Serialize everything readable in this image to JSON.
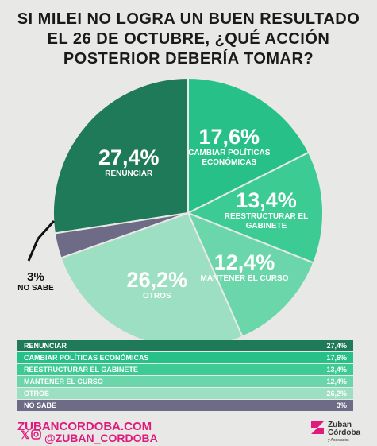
{
  "chart_data": {
    "type": "pie",
    "title": "SI MILEI NO LOGRA UN BUEN RESULTADO EL 26 DE OCTUBRE, ¿QUÉ ACCIÓN POSTERIOR DEBERÍA TOMAR?",
    "categories": [
      "RENUNCIAR",
      "CAMBIAR POLÍTICAS ECONÓMICAS",
      "REESTRUCTURAR EL GABINETE",
      "MANTENER EL CURSO",
      "OTROS",
      "NO SABE"
    ],
    "values": [
      27.4,
      17.6,
      13.4,
      12.4,
      26.2,
      3
    ],
    "value_labels": [
      "27,4%",
      "17,6%",
      "13,4%",
      "12,4%",
      "26,2%",
      "3%"
    ],
    "colors": [
      "#1e7a58",
      "#27c088",
      "#3ccb92",
      "#6bd6aa",
      "#9ddfc2",
      "#6d6b85"
    ]
  },
  "footer": {
    "website": "ZUBANCORDOBA.COM",
    "handle": "@ZUBAN_CORDOBA",
    "brand": "Zuban Córdoba",
    "brand_sub": "y Asociados"
  }
}
